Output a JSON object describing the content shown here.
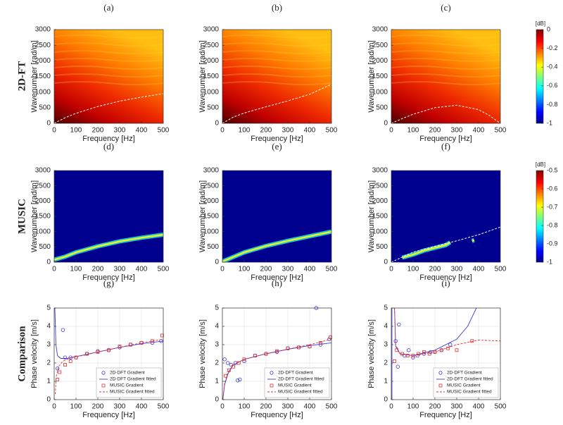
{
  "row_labels": [
    "2D-FT",
    "MUSIC",
    "Comparison"
  ],
  "chart_data": [
    {
      "type": "heatmap",
      "label": "(a)",
      "xlabel": "Frequency [Hz]",
      "ylabel": "Wavenumber [rad/m]",
      "colormap": "hot",
      "xlim": [
        0,
        500
      ],
      "xticks": [
        0,
        100,
        200,
        300,
        400,
        500
      ],
      "ylim": [
        0,
        3000
      ],
      "yticks": [
        0,
        500,
        1000,
        1500,
        2000,
        2500,
        3000
      ],
      "curve": {
        "x": [
          0,
          50,
          100,
          200,
          300,
          400,
          500
        ],
        "values": [
          0,
          180,
          320,
          540,
          710,
          840,
          950
        ]
      }
    },
    {
      "type": "heatmap",
      "label": "(b)",
      "xlabel": "Frequency [Hz]",
      "ylabel": "Wavenumber [rad/m]",
      "colormap": "hot",
      "xlim": [
        0,
        500
      ],
      "xticks": [
        0,
        100,
        200,
        300,
        400,
        500
      ],
      "ylim": [
        0,
        3000
      ],
      "yticks": [
        0,
        500,
        1000,
        1500,
        2000,
        2500,
        3000
      ],
      "curve": {
        "x": [
          0,
          50,
          100,
          200,
          300,
          400,
          500
        ],
        "values": [
          0,
          200,
          330,
          530,
          720,
          930,
          1250
        ]
      }
    },
    {
      "type": "heatmap",
      "label": "(c)",
      "xlabel": "Frequency [Hz]",
      "ylabel": "Wavenumber [rad/m]",
      "colormap": "hot",
      "xlim": [
        0,
        500
      ],
      "xticks": [
        0,
        100,
        200,
        300,
        400,
        500
      ],
      "ylim": [
        0,
        3000
      ],
      "yticks": [
        0,
        500,
        1000,
        1500,
        2000,
        2500,
        3000
      ],
      "curve": {
        "x": [
          0,
          50,
          100,
          200,
          300,
          400,
          450,
          500
        ],
        "values": [
          0,
          150,
          290,
          500,
          580,
          440,
          250,
          0
        ]
      }
    },
    {
      "type": "heatmap",
      "label": "(d)",
      "xlabel": "Frequency [Hz]",
      "ylabel": "Wavenumber [rad/m]",
      "colormap": "jet",
      "xlim": [
        0,
        500
      ],
      "xticks": [
        0,
        100,
        200,
        300,
        400,
        500
      ],
      "ylim": [
        0,
        3000
      ],
      "yticks": [
        0,
        500,
        1000,
        1500,
        2000,
        2500,
        3000
      ],
      "ridge": {
        "x": [
          0,
          50,
          100,
          200,
          300,
          400,
          500
        ],
        "values": [
          80,
          180,
          320,
          520,
          680,
          800,
          900
        ]
      }
    },
    {
      "type": "heatmap",
      "label": "(e)",
      "xlabel": "Frequency [Hz]",
      "ylabel": "Wavenumber [rad/m]",
      "colormap": "jet",
      "xlim": [
        0,
        500
      ],
      "xticks": [
        0,
        100,
        200,
        300,
        400,
        500
      ],
      "ylim": [
        0,
        3000
      ],
      "yticks": [
        0,
        500,
        1000,
        1500,
        2000,
        2500,
        3000
      ],
      "ridge": {
        "x": [
          0,
          50,
          100,
          200,
          300,
          400,
          500
        ],
        "values": [
          20,
          170,
          320,
          530,
          700,
          850,
          1000
        ]
      }
    },
    {
      "type": "heatmap",
      "label": "(f)",
      "xlabel": "Frequency [Hz]",
      "ylabel": "Wavenumber [rad/m]",
      "colormap": "jet",
      "xlim": [
        0,
        500
      ],
      "xticks": [
        0,
        100,
        200,
        300,
        400,
        500
      ],
      "ylim": [
        0,
        3000
      ],
      "yticks": [
        0,
        500,
        1000,
        1500,
        2000,
        2500,
        3000
      ],
      "ridge": {
        "x": [
          50,
          100,
          150,
          200,
          250,
          270,
          280,
          370,
          380
        ],
        "values": [
          150,
          250,
          380,
          470,
          560,
          650,
          null,
          700,
          720
        ]
      },
      "curve": {
        "x": [
          0,
          100,
          200,
          300,
          400,
          500
        ],
        "values": [
          0,
          330,
          520,
          700,
          900,
          1150
        ]
      }
    },
    {
      "type": "scatter",
      "label": "(g)",
      "xlabel": "Frequency [Hz]",
      "ylabel": "Phase velocity [m/s]",
      "grid": true,
      "legend": "lower right",
      "xlim": [
        0,
        500
      ],
      "xticks": [
        0,
        100,
        200,
        300,
        400,
        500
      ],
      "ylim": [
        0,
        5
      ],
      "yticks": [
        0,
        1,
        2,
        3,
        4,
        5
      ],
      "series": [
        {
          "name": "2D-DFT Gradient",
          "color": "#3b3bd6",
          "mode": "markers",
          "marker": "circle",
          "x": [
            15,
            40,
            50,
            75,
            100,
            150,
            200,
            250,
            300,
            350,
            400,
            450,
            490
          ],
          "values": [
            1.7,
            3.8,
            2.3,
            2.3,
            2.3,
            2.5,
            2.65,
            2.7,
            2.85,
            3.0,
            3.1,
            3.1,
            3.2
          ]
        },
        {
          "name": "2D-DFT Gradient fitted",
          "color": "#3b3bd6",
          "mode": "line",
          "x": [
            3,
            8,
            15,
            30,
            60,
            100,
            200,
            300,
            400,
            500
          ],
          "values": [
            5,
            3.0,
            2.4,
            2.25,
            2.25,
            2.35,
            2.6,
            2.85,
            3.05,
            3.2
          ]
        },
        {
          "name": "MUSIC Gradient",
          "color": "#e03030",
          "mode": "markers",
          "marker": "square",
          "x": [
            15,
            25,
            50,
            75,
            100,
            150,
            200,
            250,
            300,
            350,
            400,
            450,
            495
          ],
          "values": [
            1.1,
            1.5,
            1.9,
            2.1,
            2.3,
            2.5,
            2.6,
            2.7,
            2.9,
            3.0,
            3.1,
            3.2,
            3.5
          ]
        },
        {
          "name": "MUSIC Gradient fitted",
          "color": "#e03030",
          "mode": "line",
          "dash": true,
          "x": [
            5,
            10,
            20,
            40,
            80,
            150,
            200,
            300,
            400,
            500
          ],
          "values": [
            0.3,
            1.3,
            1.8,
            2.1,
            2.3,
            2.45,
            2.6,
            2.85,
            3.1,
            3.3
          ]
        }
      ]
    },
    {
      "type": "scatter",
      "label": "(h)",
      "xlabel": "Frequency [Hz]",
      "ylabel": "Phase velocity [m/s]",
      "grid": true,
      "legend": "lower right",
      "xlim": [
        0,
        500
      ],
      "xticks": [
        0,
        100,
        200,
        300,
        400,
        500
      ],
      "ylim": [
        0,
        5
      ],
      "yticks": [
        0,
        1,
        2,
        3,
        4,
        5
      ],
      "series": [
        {
          "name": "2D-DFT Gradient",
          "color": "#3b3bd6",
          "mode": "markers",
          "marker": "circle",
          "x": [
            10,
            25,
            40,
            60,
            70,
            80,
            100,
            150,
            200,
            250,
            300,
            350,
            400,
            430,
            450,
            490
          ],
          "values": [
            2.2,
            2.0,
            1.9,
            2.0,
            1.05,
            1.1,
            2.1,
            2.4,
            2.5,
            2.6,
            2.8,
            2.85,
            2.9,
            5.0,
            3.0,
            3.3
          ]
        },
        {
          "name": "2D-DFT Gradient fitted",
          "color": "#3b3bd6",
          "mode": "line",
          "x": [
            2,
            10,
            25,
            50,
            100,
            200,
            300,
            400,
            500
          ],
          "values": [
            0,
            0.8,
            1.4,
            1.9,
            2.2,
            2.5,
            2.75,
            2.95,
            3.1
          ]
        },
        {
          "name": "MUSIC Gradient",
          "color": "#e03030",
          "mode": "markers",
          "marker": "square",
          "x": [
            15,
            30,
            50,
            75,
            100,
            150,
            200,
            250,
            300,
            350,
            400,
            450,
            495
          ],
          "values": [
            1.3,
            1.6,
            1.8,
            2.0,
            2.2,
            2.4,
            2.5,
            2.65,
            2.8,
            2.85,
            2.9,
            3.1,
            3.4
          ]
        },
        {
          "name": "MUSIC Gradient fitted",
          "color": "#e03030",
          "mode": "line",
          "dash": true,
          "x": [
            2,
            10,
            25,
            50,
            100,
            200,
            300,
            400,
            500
          ],
          "values": [
            0,
            0.9,
            1.5,
            1.9,
            2.2,
            2.5,
            2.75,
            3.0,
            3.3
          ]
        }
      ]
    },
    {
      "type": "scatter",
      "label": "(i)",
      "xlabel": "Frequency [Hz]",
      "ylabel": "Phase velocity [m/s]",
      "grid": true,
      "legend": "lower right",
      "xlim": [
        0,
        500
      ],
      "xticks": [
        0,
        100,
        200,
        300,
        400,
        500
      ],
      "ylim": [
        0,
        5
      ],
      "yticks": [
        0,
        1,
        2,
        3,
        4,
        5
      ],
      "series": [
        {
          "name": "2D-DFT Gradient",
          "color": "#3b3bd6",
          "mode": "markers",
          "marker": "circle",
          "x": [
            20,
            30,
            35,
            60,
            80,
            100,
            120,
            150,
            180,
            200,
            230,
            270
          ],
          "values": [
            3.2,
            1.8,
            4.1,
            2.4,
            2.7,
            2.3,
            2.4,
            2.5,
            2.6,
            2.6,
            2.7,
            3.0
          ]
        },
        {
          "name": "2D-DFT Gradient fitted",
          "color": "#3b3bd6",
          "mode": "line",
          "x": [
            3,
            3,
            8,
            15,
            20,
            40,
            100,
            200,
            300,
            350,
            390
          ],
          "values": [
            0,
            5,
            null,
            5,
            2.9,
            2.5,
            2.4,
            2.7,
            3.3,
            4.0,
            5
          ]
        },
        {
          "name": "MUSIC Gradient",
          "color": "#e03030",
          "mode": "markers",
          "marker": "square",
          "x": [
            15,
            25,
            50,
            75,
            100,
            125,
            150,
            175,
            200,
            230,
            260,
            300,
            370
          ],
          "values": [
            2.1,
            2.7,
            2.5,
            2.4,
            2.4,
            2.5,
            2.6,
            2.5,
            2.6,
            2.7,
            2.8,
            2.7,
            3.2
          ]
        },
        {
          "name": "MUSIC Gradient fitted",
          "color": "#e03030",
          "mode": "line",
          "dash": true,
          "x": [
            15,
            20,
            40,
            100,
            200,
            300,
            400,
            500
          ],
          "values": [
            5,
            3.0,
            2.5,
            2.4,
            2.6,
            3.0,
            3.25,
            3.2
          ]
        }
      ]
    },
    {
      "type": "colorbar",
      "title": "[dB]",
      "colormap": "jet",
      "ylim": [
        -1,
        0
      ],
      "yticks": [
        0,
        -0.2,
        -0.4,
        -0.6,
        -0.8,
        -1
      ]
    },
    {
      "type": "colorbar",
      "title": "[dB]",
      "colormap": "jet",
      "ylim": [
        -1,
        -0.5
      ],
      "yticks": [
        -0.5,
        -0.6,
        -0.7,
        -0.8,
        -0.9,
        -1
      ]
    }
  ]
}
